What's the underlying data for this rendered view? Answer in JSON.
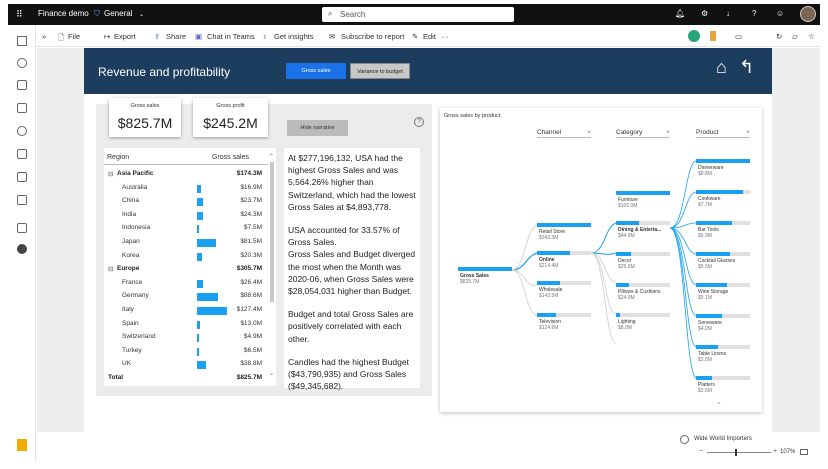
{
  "topbar": {
    "workspace": "Finance demo",
    "label": "General",
    "search_placeholder": "Search"
  },
  "toolbar": {
    "file": "File",
    "export": "Export",
    "share": "Share",
    "chat": "Chat in Teams",
    "insights": "Get insights",
    "subscribe": "Subscribe to report",
    "edit": "Edit",
    "more": "···"
  },
  "report": {
    "title": "Revenue and profitability",
    "buttons": {
      "gross_sales": "Gross sales",
      "variance": "Variance to budget"
    },
    "kpis": [
      {
        "label": "Gross sales",
        "value": "$825.7M"
      },
      {
        "label": "Gross profit",
        "value": "$245.2M"
      }
    ],
    "hide_narrative": "Hide narrative",
    "table": {
      "headers": [
        "Region",
        "Gross sales"
      ],
      "rows": [
        {
          "name": "Asia Pacific",
          "value": "$174.3M",
          "group": true,
          "share": 0
        },
        {
          "name": "Australia",
          "value": "$16.9M",
          "share": 0.133
        },
        {
          "name": "China",
          "value": "$23.7M",
          "share": 0.186
        },
        {
          "name": "India",
          "value": "$24.3M",
          "share": 0.191
        },
        {
          "name": "Indonesia",
          "value": "$7.5M",
          "share": 0.059
        },
        {
          "name": "Japan",
          "value": "$81.5M",
          "share": 0.64
        },
        {
          "name": "Korea",
          "value": "$20.3M",
          "share": 0.159
        },
        {
          "name": "Europe",
          "value": "$305.7M",
          "group": true,
          "share": 0
        },
        {
          "name": "France",
          "value": "$26.4M",
          "share": 0.207
        },
        {
          "name": "Germany",
          "value": "$88.6M",
          "share": 0.696
        },
        {
          "name": "Italy",
          "value": "$127.4M",
          "share": 1.0
        },
        {
          "name": "Spain",
          "value": "$13.0M",
          "share": 0.102
        },
        {
          "name": "Switzerland",
          "value": "$4.9M",
          "share": 0.038
        },
        {
          "name": "Turkey",
          "value": "$6.5M",
          "share": 0.051
        },
        {
          "name": "UK",
          "value": "$38.8M",
          "share": 0.305
        },
        {
          "name": "Total",
          "value": "$825.7M",
          "group": true,
          "share": 0
        }
      ]
    },
    "narrative": [
      "At $277,196,132, USA had the highest Gross Sales and was 5,564.26% higher than Switzerland, which had the lowest Gross Sales at $4,893,778.",
      "USA accounted for 33.57% of Gross Sales.\nGross Sales and Budget diverged the most when the Month was 2020-06, when Gross Sales were $28,054,031 higher than Budget.",
      "Budget and total Gross Sales are positively correlated with each other.",
      "Candles had the highest Budget ($43,790,935) and Gross Sales ($49,345,682)."
    ],
    "tree": {
      "title": "Gross sales by product",
      "headers": [
        "Channel",
        "Category",
        "Product"
      ],
      "root": {
        "name": "Gross Sales",
        "value": "$825.7M"
      },
      "channels": [
        {
          "name": "Retail Store",
          "value": "$343.3M",
          "share": 1.0
        },
        {
          "name": "Online",
          "value": "$214.4M",
          "share": 0.62,
          "selected": true
        },
        {
          "name": "Wholesale",
          "value": "$143.5M",
          "share": 0.42
        },
        {
          "name": "Television",
          "value": "$124.6M",
          "share": 0.36
        }
      ],
      "categories": [
        {
          "name": "Furniture",
          "value": "$105.0M",
          "share": 1.0
        },
        {
          "name": "Dining & Enterta...",
          "value": "$44.9M",
          "share": 0.43,
          "selected": true
        },
        {
          "name": "Decor",
          "value": "$29.5M",
          "share": 0.28
        },
        {
          "name": "Pillows & Cushions",
          "value": "$24.9M",
          "share": 0.24
        },
        {
          "name": "Lighting",
          "value": "$8.0M",
          "share": 0.08
        }
      ],
      "products": [
        {
          "name": "Dinnerware",
          "value": "$8.8M",
          "share": 1.0
        },
        {
          "name": "Cookware",
          "value": "$7.7M",
          "share": 0.87
        },
        {
          "name": "Bar Tools",
          "value": "$5.9M",
          "share": 0.67
        },
        {
          "name": "Cocktail Glasses",
          "value": "$5.5M",
          "share": 0.63
        },
        {
          "name": "Wine Storage",
          "value": "$5.1M",
          "share": 0.58
        },
        {
          "name": "Serveware",
          "value": "$4.2M",
          "share": 0.48
        },
        {
          "name": "Table Linens",
          "value": "$3.5M",
          "share": 0.4
        },
        {
          "name": "Platters",
          "value": "$2.6M",
          "share": 0.3
        }
      ]
    }
  },
  "status": {
    "brand": "Wide World Importers",
    "zoom": "107%"
  },
  "colors": {
    "accent": "#1aa0f0",
    "banner": "#1c3d5e",
    "topbar": "#111111"
  }
}
